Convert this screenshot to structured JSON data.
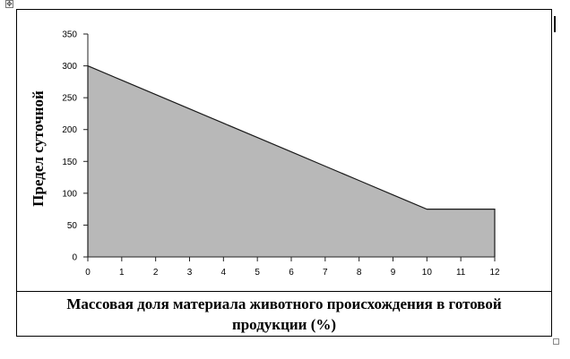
{
  "chart_data": {
    "type": "area",
    "x": [
      0,
      1,
      2,
      3,
      4,
      5,
      6,
      7,
      8,
      9,
      10,
      11,
      12
    ],
    "y": [
      300,
      277.5,
      255,
      232.5,
      210,
      187.5,
      165,
      142.5,
      120,
      97.5,
      75,
      75,
      75
    ],
    "xlim": [
      0,
      12
    ],
    "ylim": [
      0,
      350
    ],
    "xticks": [
      "0",
      "1",
      "2",
      "3",
      "4",
      "5",
      "6",
      "7",
      "8",
      "9",
      "10",
      "11",
      "12"
    ],
    "yticks": [
      "0",
      "50",
      "100",
      "150",
      "200",
      "250",
      "300",
      "350"
    ],
    "ylabel": "Предел суточной",
    "xlabel": "Массовая доля материала животного происхождения в готовой продукции (%)",
    "grid": false,
    "fill_color": "#b8b8b8",
    "line_color": "#1a1a1a"
  },
  "icons": {
    "move_handle": "table-move-icon",
    "move_glyph": "✥",
    "resize_handle": "table-resize-icon"
  }
}
